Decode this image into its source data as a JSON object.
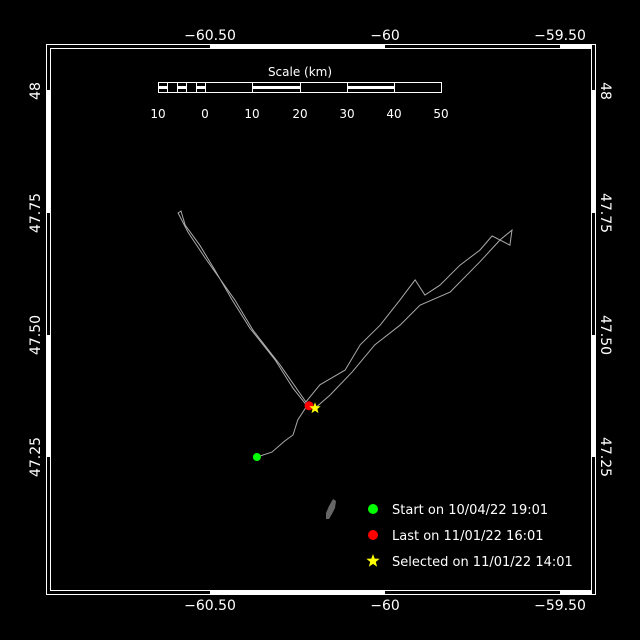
{
  "map": {
    "lon_ticks": [
      {
        "value": -60.5,
        "label": "−60.50"
      },
      {
        "value": -60,
        "label": "−60"
      },
      {
        "value": -59.5,
        "label": "−59.50"
      }
    ],
    "lat_ticks": [
      {
        "value": 48,
        "label": "48"
      },
      {
        "value": 47.75,
        "label": "47.75"
      },
      {
        "value": 47.5,
        "label": "47.50"
      },
      {
        "value": 47.25,
        "label": "47.25"
      }
    ],
    "lon_range": [
      -60.95,
      -59.4
    ],
    "lat_range": [
      47.09,
      48.09
    ],
    "scale": {
      "title": "Scale (km)",
      "labels": [
        "10",
        "0",
        "10",
        "20",
        "30",
        "40",
        "50"
      ]
    },
    "track_color": "#aaaaaa",
    "track": [
      [
        -60.366,
        47.25
      ],
      [
        -60.323,
        47.26
      ],
      [
        -60.286,
        47.283
      ],
      [
        -60.263,
        47.295
      ],
      [
        -60.249,
        47.326
      ],
      [
        -60.223,
        47.355
      ],
      [
        -60.263,
        47.391
      ],
      [
        -60.314,
        47.449
      ],
      [
        -60.386,
        47.514
      ],
      [
        -60.437,
        47.572
      ],
      [
        -60.486,
        47.633
      ],
      [
        -60.529,
        47.684
      ],
      [
        -60.571,
        47.725
      ],
      [
        -60.583,
        47.754
      ],
      [
        -60.591,
        47.75
      ],
      [
        -60.563,
        47.711
      ],
      [
        -60.514,
        47.658
      ],
      [
        -60.429,
        47.572
      ],
      [
        -60.377,
        47.51
      ],
      [
        -60.3,
        47.439
      ],
      [
        -60.226,
        47.363
      ],
      [
        -60.186,
        47.398
      ],
      [
        -60.114,
        47.428
      ],
      [
        -60.071,
        47.48
      ],
      [
        -60.014,
        47.52
      ],
      [
        -59.957,
        47.572
      ],
      [
        -59.914,
        47.613
      ],
      [
        -59.886,
        47.582
      ],
      [
        -59.843,
        47.602
      ],
      [
        -59.786,
        47.643
      ],
      [
        -59.729,
        47.674
      ],
      [
        -59.694,
        47.703
      ],
      [
        -59.643,
        47.684
      ],
      [
        -59.637,
        47.715
      ],
      [
        -59.671,
        47.695
      ],
      [
        -59.729,
        47.65
      ],
      [
        -59.814,
        47.588
      ],
      [
        -59.9,
        47.561
      ],
      [
        -59.957,
        47.52
      ],
      [
        -60.029,
        47.48
      ],
      [
        -60.094,
        47.424
      ],
      [
        -60.157,
        47.377
      ],
      [
        -60.2,
        47.35
      ]
    ],
    "start_point": [
      -60.366,
      47.25
    ],
    "last_point": [
      -60.217,
      47.355
    ],
    "selected_point": [
      -60.2,
      47.35
    ]
  },
  "legend": {
    "start": {
      "label": "Start on 10/04/22 19:01",
      "color": "#00ff00",
      "icon": "circle"
    },
    "last": {
      "label": "Last on 11/01/22 16:01",
      "color": "#ff0000",
      "icon": "circle"
    },
    "selected": {
      "label": "Selected on 11/01/22 14:01",
      "color": "#ffff00",
      "icon": "star"
    }
  }
}
